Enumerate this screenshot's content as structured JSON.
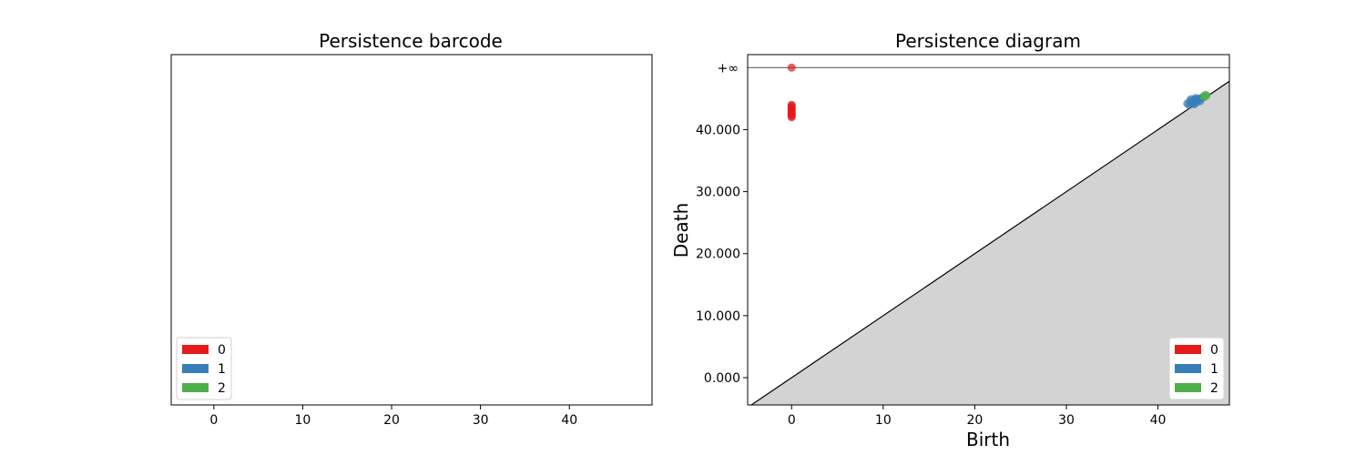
{
  "chart_data": [
    {
      "type": "bar",
      "title": "Persistence barcode",
      "xlabel": "",
      "ylabel": "",
      "xlim": [
        -4.8,
        49.3
      ],
      "xticks": [
        0,
        10,
        20,
        30,
        40
      ],
      "grid": false,
      "legend": {
        "placement": "lower-left",
        "entries": [
          {
            "label": "0",
            "color": "#e41a1c"
          },
          {
            "label": "1",
            "color": "#377eb8"
          },
          {
            "label": "2",
            "color": "#4daf4a"
          }
        ]
      },
      "bars": []
    },
    {
      "type": "scatter",
      "title": "Persistence diagram",
      "xlabel": "Birth",
      "ylabel": "Death",
      "xlim": [
        -4.8,
        47.8
      ],
      "ylim": [
        -4.4,
        52.1
      ],
      "xticks": [
        0,
        10,
        20,
        30,
        40
      ],
      "yticks": [
        {
          "value": 0,
          "label": "0.000"
        },
        {
          "value": 10,
          "label": "10.000"
        },
        {
          "value": 20,
          "label": "20.000"
        },
        {
          "value": 30,
          "label": "30.000"
        },
        {
          "value": 40,
          "label": "40.000"
        }
      ],
      "infinity": {
        "value": 50,
        "label": "+∞"
      },
      "grid": false,
      "legend": {
        "placement": "lower-right",
        "entries": [
          {
            "label": "0",
            "color": "#e41a1c"
          },
          {
            "label": "1",
            "color": "#377eb8"
          },
          {
            "label": "2",
            "color": "#4daf4a"
          }
        ]
      },
      "series": [
        {
          "dimension": "0",
          "color": "#e41a1c",
          "points": [
            [
              0,
              50
            ],
            [
              0,
              44.0
            ],
            [
              0,
              43.8
            ],
            [
              0,
              43.6
            ],
            [
              0,
              43.4
            ],
            [
              0,
              43.2
            ],
            [
              0,
              43.0
            ],
            [
              0,
              42.8
            ],
            [
              0,
              42.6
            ],
            [
              0,
              42.4
            ],
            [
              0,
              42.2
            ],
            [
              0,
              42.0
            ]
          ]
        },
        {
          "dimension": "1",
          "color": "#377eb8",
          "points": [
            [
              43.2,
              44.2
            ],
            [
              43.4,
              44.0
            ],
            [
              43.5,
              44.6
            ],
            [
              43.7,
              44.3
            ],
            [
              43.9,
              44.7
            ],
            [
              44.0,
              44.1
            ],
            [
              44.2,
              44.9
            ],
            [
              44.3,
              44.5
            ],
            [
              44.5,
              45.0
            ],
            [
              44.6,
              44.6
            ],
            [
              44.8,
              45.1
            ],
            [
              44.9,
              45.2
            ],
            [
              43.6,
              44.9
            ],
            [
              44.1,
              45.1
            ],
            [
              43.8,
              44.2
            ]
          ]
        },
        {
          "dimension": "2",
          "color": "#4daf4a",
          "points": [
            [
              45.0,
              45.4
            ],
            [
              45.2,
              45.6
            ],
            [
              45.3,
              45.5
            ],
            [
              45.1,
              45.3
            ]
          ]
        }
      ]
    }
  ]
}
